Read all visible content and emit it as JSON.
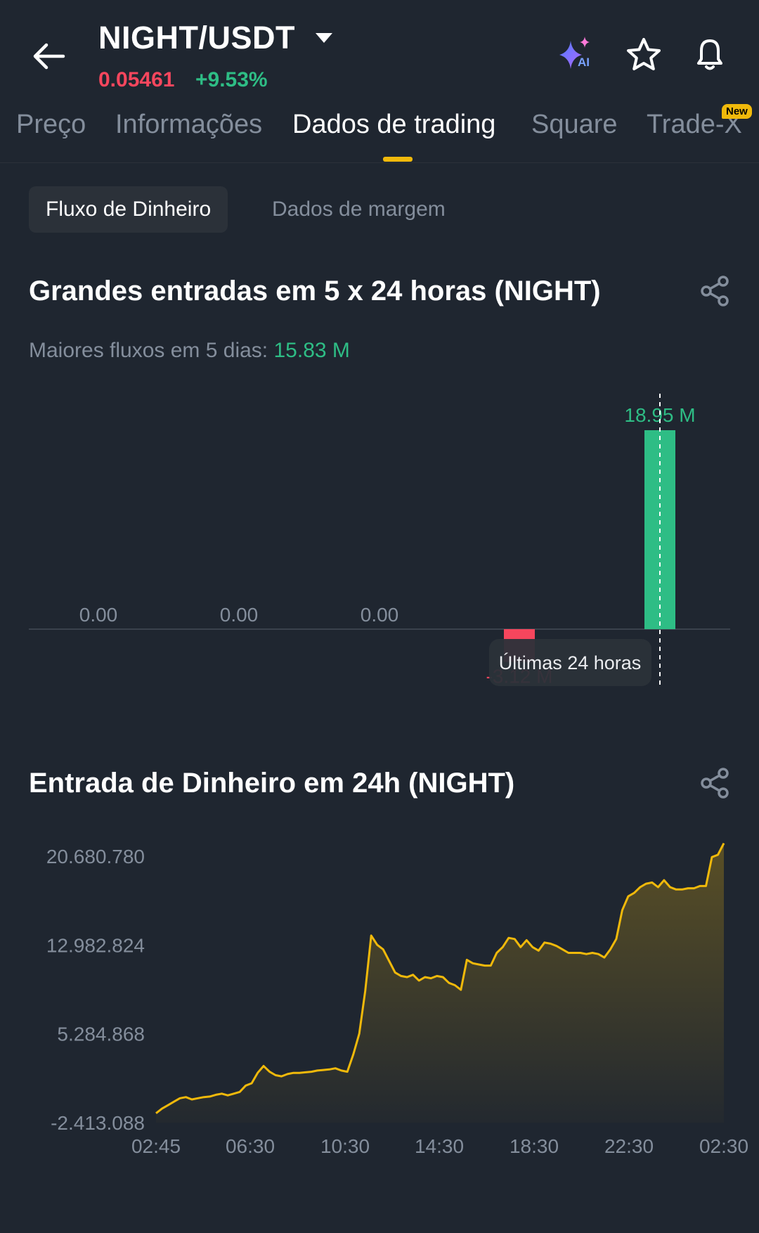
{
  "header": {
    "pair": "NIGHT/USDT",
    "price": "0.05461",
    "change": "+9.53%",
    "icons": [
      "back-arrow-icon",
      "caret-down-icon",
      "ai-sparkle-icon",
      "star-icon",
      "bell-icon"
    ],
    "ai_label": "AI"
  },
  "tabs": [
    {
      "label": "Preço"
    },
    {
      "label": "Informações"
    },
    {
      "label": "Dados de trading",
      "active": true
    },
    {
      "label": "Square"
    },
    {
      "label": "Trade-X",
      "badge": "New"
    }
  ],
  "subtabs": [
    {
      "label": "Fluxo de Dinheiro",
      "active": true
    },
    {
      "label": "Dados de margem"
    }
  ],
  "big_inflow": {
    "title": "Grandes entradas em 5 x 24 horas (NIGHT)",
    "summary_label": "Maiores fluxos em 5 dias:",
    "summary_value": "15.83 M",
    "tooltip": "Últimas 24 horas"
  },
  "inflow_24h": {
    "title": "Entrada de Dinheiro em 24h (NIGHT)"
  },
  "colors": {
    "background": "#1f2630",
    "positive": "#2ebd85",
    "negative": "#f6465d",
    "accent": "#f0b90b",
    "muted": "#848e9c"
  },
  "chart_data": [
    {
      "type": "bar",
      "title": "Grandes entradas em 5 x 24 horas (NIGHT)",
      "categories": [
        "",
        "",
        "",
        "",
        "Últimas 24 horas"
      ],
      "values": [
        0,
        0,
        0,
        -3.12,
        18.95
      ],
      "labels": [
        "0.00",
        "0.00",
        "0.00",
        "-3.12 M",
        "18.95 M"
      ],
      "unit": "M",
      "colors": {
        "positive": "#2ebd85",
        "negative": "#f6465d"
      }
    },
    {
      "type": "area",
      "title": "Entrada de Dinheiro em 24h (NIGHT)",
      "x_ticks": [
        "02:45",
        "06:30",
        "10:30",
        "14:30",
        "18:30",
        "22:30",
        "02:30"
      ],
      "y_ticks": [
        "20.680.780",
        "12.982.824",
        "5.284.868",
        "-2.413.088"
      ],
      "y_tick_values": [
        20680780,
        12982824,
        5284868,
        -2413088
      ],
      "ylim": [
        -2413088,
        20680780
      ],
      "x_range_hours": [
        0,
        23.75
      ],
      "line_color": "#f0b90b",
      "points": [
        [
          0.0,
          -1.6
        ],
        [
          0.25,
          -1.2
        ],
        [
          0.5,
          -0.9
        ],
        [
          0.75,
          -0.6
        ],
        [
          1.0,
          -0.3
        ],
        [
          1.25,
          -0.2
        ],
        [
          1.5,
          -0.4
        ],
        [
          1.75,
          -0.3
        ],
        [
          2.0,
          -0.2
        ],
        [
          2.25,
          -0.15
        ],
        [
          2.5,
          0.0
        ],
        [
          2.75,
          0.1
        ],
        [
          3.0,
          -0.05
        ],
        [
          3.25,
          0.1
        ],
        [
          3.5,
          0.25
        ],
        [
          3.75,
          0.8
        ],
        [
          4.0,
          1.0
        ],
        [
          4.25,
          1.9
        ],
        [
          4.5,
          2.5
        ],
        [
          4.75,
          2.0
        ],
        [
          5.0,
          1.7
        ],
        [
          5.25,
          1.6
        ],
        [
          5.5,
          1.8
        ],
        [
          5.75,
          1.9
        ],
        [
          6.0,
          1.9
        ],
        [
          6.25,
          1.95
        ],
        [
          6.5,
          2.0
        ],
        [
          6.75,
          2.1
        ],
        [
          7.0,
          2.15
        ],
        [
          7.25,
          2.2
        ],
        [
          7.5,
          2.3
        ],
        [
          7.75,
          2.1
        ],
        [
          8.0,
          2.0
        ],
        [
          8.25,
          3.5
        ],
        [
          8.5,
          5.3
        ],
        [
          8.75,
          9.0
        ],
        [
          9.0,
          13.8
        ],
        [
          9.25,
          13.0
        ],
        [
          9.5,
          12.6
        ],
        [
          9.75,
          11.6
        ],
        [
          10.0,
          10.6
        ],
        [
          10.25,
          10.3
        ],
        [
          10.5,
          10.2
        ],
        [
          10.75,
          10.4
        ],
        [
          11.0,
          9.9
        ],
        [
          11.25,
          10.2
        ],
        [
          11.5,
          10.1
        ],
        [
          11.75,
          10.3
        ],
        [
          12.0,
          10.2
        ],
        [
          12.25,
          9.7
        ],
        [
          12.5,
          9.5
        ],
        [
          12.75,
          9.1
        ],
        [
          13.0,
          11.7
        ],
        [
          13.25,
          11.4
        ],
        [
          13.5,
          11.3
        ],
        [
          13.75,
          11.2
        ],
        [
          14.0,
          11.2
        ],
        [
          14.25,
          12.3
        ],
        [
          14.5,
          12.8
        ],
        [
          14.75,
          13.6
        ],
        [
          15.0,
          13.5
        ],
        [
          15.25,
          12.8
        ],
        [
          15.5,
          13.4
        ],
        [
          15.75,
          12.8
        ],
        [
          16.0,
          12.5
        ],
        [
          16.25,
          13.2
        ],
        [
          16.5,
          13.1
        ],
        [
          16.75,
          12.9
        ],
        [
          17.0,
          12.6
        ],
        [
          17.25,
          12.3
        ],
        [
          17.5,
          12.3
        ],
        [
          17.75,
          12.3
        ],
        [
          18.0,
          12.2
        ],
        [
          18.25,
          12.3
        ],
        [
          18.5,
          12.2
        ],
        [
          18.75,
          11.9
        ],
        [
          19.0,
          12.6
        ],
        [
          19.25,
          13.5
        ],
        [
          19.5,
          16.0
        ],
        [
          19.75,
          17.2
        ],
        [
          20.0,
          17.5
        ],
        [
          20.25,
          18.0
        ],
        [
          20.5,
          18.3
        ],
        [
          20.75,
          18.4
        ],
        [
          21.0,
          18.0
        ],
        [
          21.25,
          18.6
        ],
        [
          21.5,
          18.0
        ],
        [
          21.75,
          17.8
        ],
        [
          22.0,
          17.8
        ],
        [
          22.25,
          17.9
        ],
        [
          22.5,
          17.9
        ],
        [
          22.75,
          18.1
        ],
        [
          23.0,
          18.1
        ],
        [
          23.25,
          20.6
        ],
        [
          23.5,
          20.8
        ],
        [
          23.75,
          21.8
        ]
      ],
      "points_unit": "millions"
    }
  ]
}
